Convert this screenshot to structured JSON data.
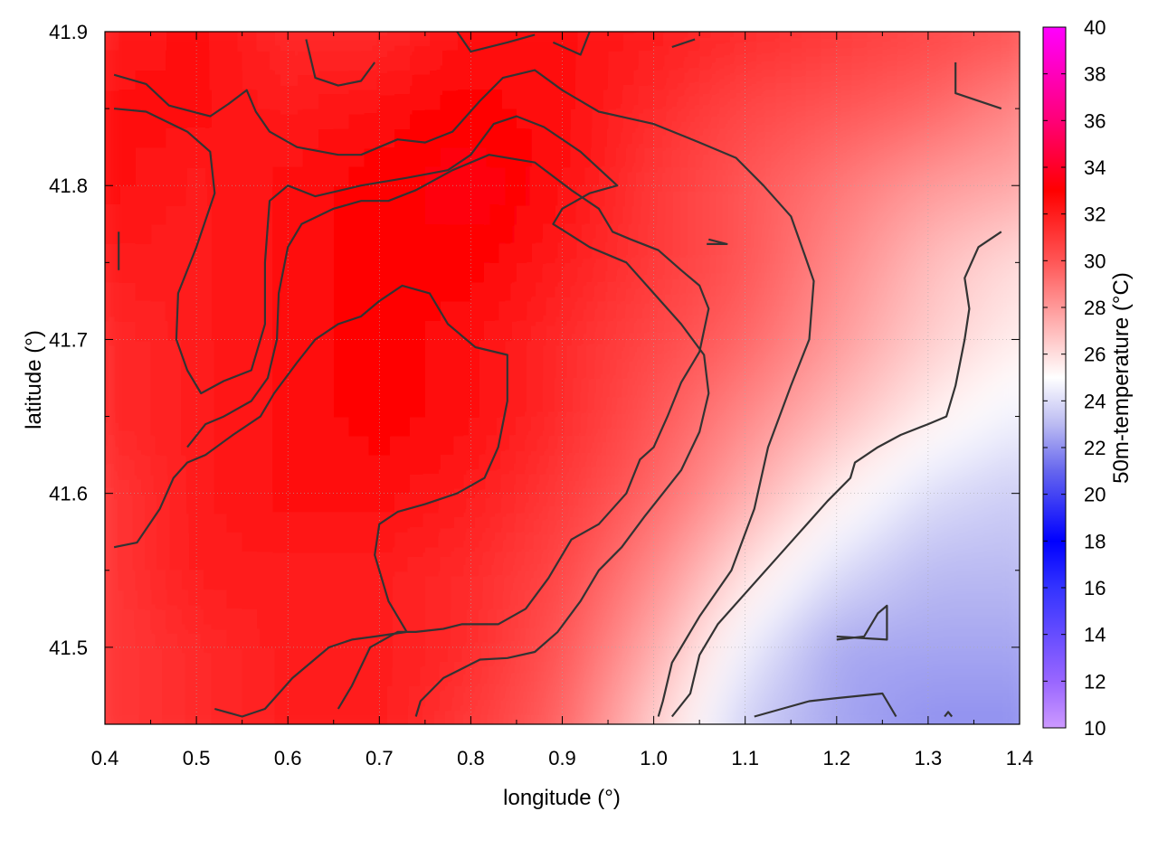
{
  "chart_data": {
    "type": "heatmap",
    "title": "",
    "xlabel": "longitude (°)",
    "ylabel": "latitude (°)",
    "colorbar_label": "50m-temperature (°C)",
    "xlim": [
      0.4,
      1.4
    ],
    "ylim": [
      41.45,
      41.9
    ],
    "x_ticks": [
      0.4,
      0.5,
      0.6,
      0.7,
      0.8,
      0.9,
      1.0,
      1.1,
      1.2,
      1.3,
      1.4
    ],
    "x_tick_labels": [
      "0.4",
      "0.5",
      "0.6",
      "0.7",
      "0.8",
      "0.9",
      "1.0",
      "1.1",
      "1.2",
      "1.3",
      "1.4"
    ],
    "y_ticks": [
      41.5,
      41.6,
      41.7,
      41.8,
      41.9
    ],
    "y_tick_labels": [
      "41.5",
      "41.6",
      "41.7",
      "41.8",
      "41.9"
    ],
    "colorbar_range": [
      10,
      40
    ],
    "colorbar_ticks": [
      10,
      12,
      14,
      16,
      18,
      20,
      22,
      24,
      26,
      28,
      30,
      32,
      34,
      36,
      38,
      40
    ],
    "colorbar_tick_labels": [
      "10",
      "12",
      "14",
      "16",
      "18",
      "20",
      "22",
      "24",
      "26",
      "28",
      "30",
      "32",
      "34",
      "36",
      "38",
      "40"
    ],
    "colormap": [
      {
        "value": 10,
        "color": "#cc99ff"
      },
      {
        "value": 12,
        "color": "#9966ff"
      },
      {
        "value": 16,
        "color": "#3333ff"
      },
      {
        "value": 18,
        "color": "#0000ff"
      },
      {
        "value": 21,
        "color": "#6666ee"
      },
      {
        "value": 23,
        "color": "#bbbbf2"
      },
      {
        "value": 25,
        "color": "#ffffff"
      },
      {
        "value": 27,
        "color": "#ffbbbb"
      },
      {
        "value": 30,
        "color": "#ff5555"
      },
      {
        "value": 33,
        "color": "#ff0000"
      },
      {
        "value": 36,
        "color": "#ff0077"
      },
      {
        "value": 40,
        "color": "#ff00ff"
      }
    ],
    "grid": true,
    "contour_color": "#333333",
    "temperature_field_approx": {
      "description_values": "estimated 50m temperature samples (°C) at longitude/latitude grid nodes",
      "lon": [
        0.4,
        0.5,
        0.6,
        0.7,
        0.8,
        0.9,
        1.0,
        1.1,
        1.2,
        1.3,
        1.4
      ],
      "lat": [
        41.45,
        41.5,
        41.55,
        41.6,
        41.65,
        41.7,
        41.75,
        41.8,
        41.85,
        41.9
      ],
      "values": [
        [
          31.0,
          31.5,
          32.0,
          32.0,
          31.0,
          29.5,
          26.5,
          23.5,
          22.5,
          22.0,
          22.0
        ],
        [
          31.0,
          31.5,
          32.0,
          32.0,
          31.5,
          30.0,
          27.5,
          24.5,
          22.5,
          22.5,
          22.5
        ],
        [
          31.0,
          32.0,
          32.0,
          32.0,
          31.5,
          30.5,
          28.5,
          26.0,
          24.0,
          23.0,
          23.0
        ],
        [
          31.0,
          32.0,
          32.5,
          32.5,
          32.0,
          31.0,
          29.5,
          27.5,
          25.5,
          24.0,
          23.5
        ],
        [
          31.5,
          32.0,
          32.5,
          33.0,
          32.5,
          31.5,
          30.0,
          28.5,
          27.0,
          25.5,
          24.5
        ],
        [
          31.5,
          32.0,
          32.5,
          33.0,
          32.5,
          31.5,
          30.5,
          29.5,
          28.0,
          26.5,
          25.5
        ],
        [
          32.0,
          32.0,
          32.5,
          33.0,
          33.0,
          32.0,
          31.0,
          30.0,
          28.5,
          27.0,
          26.0
        ],
        [
          32.5,
          32.0,
          32.5,
          33.0,
          33.5,
          32.5,
          31.0,
          30.0,
          29.0,
          28.0,
          27.5
        ],
        [
          32.5,
          32.5,
          32.0,
          32.5,
          33.0,
          32.5,
          31.5,
          30.5,
          30.0,
          29.5,
          28.5
        ],
        [
          32.0,
          32.5,
          31.5,
          31.5,
          32.5,
          32.5,
          32.0,
          31.5,
          31.0,
          30.5,
          30.0
        ]
      ]
    },
    "contours": [
      {
        "points": [
          [
            0.41,
            41.872
          ],
          [
            0.445,
            41.866
          ],
          [
            0.47,
            41.852
          ],
          [
            0.515,
            41.845
          ],
          [
            0.535,
            41.853
          ],
          [
            0.555,
            41.862
          ],
          [
            0.565,
            41.848
          ],
          [
            0.58,
            41.835
          ],
          [
            0.61,
            41.825
          ],
          [
            0.655,
            41.82
          ],
          [
            0.68,
            41.82
          ],
          [
            0.72,
            41.83
          ],
          [
            0.75,
            41.828
          ],
          [
            0.78,
            41.835
          ],
          [
            0.81,
            41.855
          ],
          [
            0.835,
            41.87
          ],
          [
            0.87,
            41.875
          ],
          [
            0.9,
            41.862
          ],
          [
            0.94,
            41.848
          ],
          [
            1.0,
            41.84
          ],
          [
            1.05,
            41.828
          ],
          [
            1.09,
            41.818
          ],
          [
            1.12,
            41.8
          ],
          [
            1.15,
            41.78
          ],
          [
            1.165,
            41.755
          ],
          [
            1.175,
            41.738
          ],
          [
            1.17,
            41.7
          ],
          [
            1.15,
            41.67
          ],
          [
            1.125,
            41.63
          ],
          [
            1.11,
            41.59
          ],
          [
            1.085,
            41.55
          ],
          [
            1.05,
            41.52
          ],
          [
            1.02,
            41.49
          ],
          [
            1.01,
            41.465
          ],
          [
            1.005,
            41.455
          ]
        ]
      },
      {
        "points": [
          [
            0.41,
            41.85
          ],
          [
            0.445,
            41.848
          ],
          [
            0.49,
            41.835
          ],
          [
            0.515,
            41.822
          ],
          [
            0.52,
            41.795
          ],
          [
            0.5,
            41.76
          ],
          [
            0.48,
            41.73
          ],
          [
            0.478,
            41.7
          ],
          [
            0.49,
            41.68
          ],
          [
            0.505,
            41.665
          ],
          [
            0.53,
            41.673
          ],
          [
            0.56,
            41.68
          ],
          [
            0.575,
            41.71
          ],
          [
            0.575,
            41.75
          ],
          [
            0.58,
            41.79
          ],
          [
            0.6,
            41.8
          ],
          [
            0.63,
            41.793
          ],
          [
            0.68,
            41.8
          ],
          [
            0.73,
            41.805
          ],
          [
            0.775,
            41.81
          ],
          [
            0.8,
            41.82
          ],
          [
            0.825,
            41.84
          ],
          [
            0.85,
            41.845
          ],
          [
            0.88,
            41.838
          ],
          [
            0.92,
            41.822
          ],
          [
            0.96,
            41.8
          ],
          [
            0.93,
            41.795
          ],
          [
            0.9,
            41.785
          ],
          [
            0.89,
            41.775
          ],
          [
            0.93,
            41.76
          ],
          [
            0.97,
            41.75
          ],
          [
            1.0,
            41.73
          ],
          [
            1.03,
            41.71
          ],
          [
            1.055,
            41.69
          ],
          [
            1.06,
            41.665
          ],
          [
            1.05,
            41.64
          ],
          [
            1.03,
            41.615
          ],
          [
            1.01,
            41.6
          ],
          [
            0.99,
            41.585
          ],
          [
            0.965,
            41.565
          ],
          [
            0.94,
            41.55
          ],
          [
            0.92,
            41.53
          ],
          [
            0.895,
            41.51
          ],
          [
            0.87,
            41.497
          ],
          [
            0.84,
            41.493
          ],
          [
            0.81,
            41.492
          ],
          [
            0.77,
            41.48
          ],
          [
            0.745,
            41.465
          ],
          [
            0.74,
            41.455
          ]
        ]
      },
      {
        "points": [
          [
            0.41,
            41.565
          ],
          [
            0.435,
            41.568
          ],
          [
            0.46,
            41.59
          ],
          [
            0.475,
            41.61
          ],
          [
            0.49,
            41.62
          ],
          [
            0.51,
            41.625
          ],
          [
            0.54,
            41.638
          ],
          [
            0.57,
            41.65
          ],
          [
            0.585,
            41.665
          ],
          [
            0.61,
            41.685
          ],
          [
            0.63,
            41.7
          ],
          [
            0.655,
            41.71
          ],
          [
            0.68,
            41.715
          ],
          [
            0.7,
            41.725
          ],
          [
            0.725,
            41.735
          ],
          [
            0.755,
            41.73
          ],
          [
            0.775,
            41.71
          ],
          [
            0.805,
            41.695
          ],
          [
            0.84,
            41.69
          ],
          [
            0.84,
            41.66
          ],
          [
            0.83,
            41.63
          ],
          [
            0.815,
            41.61
          ],
          [
            0.785,
            41.6
          ],
          [
            0.75,
            41.593
          ],
          [
            0.72,
            41.588
          ],
          [
            0.7,
            41.58
          ],
          [
            0.695,
            41.56
          ],
          [
            0.71,
            41.53
          ],
          [
            0.73,
            41.51
          ],
          [
            0.695,
            41.507
          ],
          [
            0.67,
            41.505
          ],
          [
            0.645,
            41.5
          ],
          [
            0.625,
            41.49
          ],
          [
            0.605,
            41.48
          ],
          [
            0.59,
            41.47
          ],
          [
            0.575,
            41.46
          ],
          [
            0.55,
            41.455
          ],
          [
            0.52,
            41.46
          ]
        ]
      },
      {
        "points": [
          [
            0.655,
            41.46
          ],
          [
            0.67,
            41.475
          ],
          [
            0.69,
            41.5
          ],
          [
            0.72,
            41.51
          ],
          [
            0.74,
            41.51
          ],
          [
            0.77,
            41.512
          ],
          [
            0.79,
            41.515
          ],
          [
            0.83,
            41.515
          ],
          [
            0.86,
            41.525
          ],
          [
            0.885,
            41.545
          ],
          [
            0.91,
            41.57
          ],
          [
            0.94,
            41.58
          ],
          [
            0.97,
            41.6
          ],
          [
            0.985,
            41.622
          ],
          [
            1.0,
            41.63
          ],
          [
            1.015,
            41.65
          ],
          [
            1.03,
            41.672
          ],
          [
            1.05,
            41.692
          ],
          [
            1.06,
            41.72
          ],
          [
            1.05,
            41.735
          ],
          [
            1.03,
            41.745
          ],
          [
            1.005,
            41.758
          ],
          [
            0.975,
            41.765
          ],
          [
            0.955,
            41.77
          ],
          [
            0.94,
            41.785
          ],
          [
            0.91,
            41.797
          ],
          [
            0.87,
            41.815
          ],
          [
            0.82,
            41.82
          ],
          [
            0.78,
            41.81
          ],
          [
            0.74,
            41.797
          ],
          [
            0.71,
            41.79
          ],
          [
            0.68,
            41.79
          ],
          [
            0.65,
            41.785
          ],
          [
            0.615,
            41.775
          ],
          [
            0.6,
            41.76
          ],
          [
            0.59,
            41.73
          ],
          [
            0.588,
            41.7
          ],
          [
            0.578,
            41.675
          ],
          [
            0.56,
            41.66
          ],
          [
            0.53,
            41.65
          ],
          [
            0.51,
            41.645
          ],
          [
            0.49,
            41.63
          ]
        ]
      },
      {
        "points": [
          [
            0.62,
            41.895
          ],
          [
            0.63,
            41.87
          ],
          [
            0.655,
            41.865
          ],
          [
            0.68,
            41.868
          ],
          [
            0.695,
            41.88
          ]
        ]
      },
      {
        "points": [
          [
            0.785,
            41.9
          ],
          [
            0.8,
            41.887
          ],
          [
            0.84,
            41.893
          ],
          [
            0.87,
            41.898
          ]
        ]
      },
      {
        "points": [
          [
            0.89,
            41.893
          ],
          [
            0.92,
            41.885
          ],
          [
            0.93,
            41.9
          ]
        ]
      },
      {
        "points": [
          [
            1.02,
            41.89
          ],
          [
            1.045,
            41.895
          ]
        ]
      },
      {
        "points": [
          [
            0.415,
            41.77
          ],
          [
            0.415,
            41.745
          ]
        ]
      },
      {
        "points": [
          [
            1.06,
            41.765
          ],
          [
            1.08,
            41.762
          ],
          [
            1.058,
            41.762
          ]
        ]
      },
      {
        "points": [
          [
            1.33,
            41.88
          ],
          [
            1.33,
            41.86
          ],
          [
            1.38,
            41.85
          ]
        ]
      },
      {
        "points": [
          [
            1.02,
            41.455
          ],
          [
            1.04,
            41.47
          ],
          [
            1.05,
            41.495
          ],
          [
            1.07,
            41.515
          ],
          [
            1.1,
            41.535
          ],
          [
            1.13,
            41.555
          ],
          [
            1.16,
            41.575
          ],
          [
            1.19,
            41.595
          ],
          [
            1.215,
            41.61
          ],
          [
            1.22,
            41.62
          ],
          [
            1.245,
            41.63
          ],
          [
            1.27,
            41.638
          ],
          [
            1.3,
            41.645
          ],
          [
            1.32,
            41.65
          ],
          [
            1.33,
            41.67
          ],
          [
            1.34,
            41.7
          ],
          [
            1.345,
            41.72
          ],
          [
            1.34,
            41.74
          ],
          [
            1.355,
            41.76
          ],
          [
            1.38,
            41.77
          ]
        ]
      },
      {
        "points": [
          [
            1.2,
            41.505
          ],
          [
            1.23,
            41.507
          ],
          [
            1.245,
            41.522
          ],
          [
            1.255,
            41.527
          ],
          [
            1.255,
            41.505
          ],
          [
            1.2,
            41.507
          ]
        ]
      },
      {
        "points": [
          [
            1.11,
            41.455
          ],
          [
            1.14,
            41.46
          ],
          [
            1.17,
            41.465
          ],
          [
            1.2,
            41.467
          ],
          [
            1.25,
            41.47
          ],
          [
            1.265,
            41.455
          ]
        ]
      },
      {
        "points": [
          [
            1.318,
            41.455
          ],
          [
            1.322,
            41.458
          ],
          [
            1.326,
            41.455
          ]
        ]
      }
    ]
  }
}
